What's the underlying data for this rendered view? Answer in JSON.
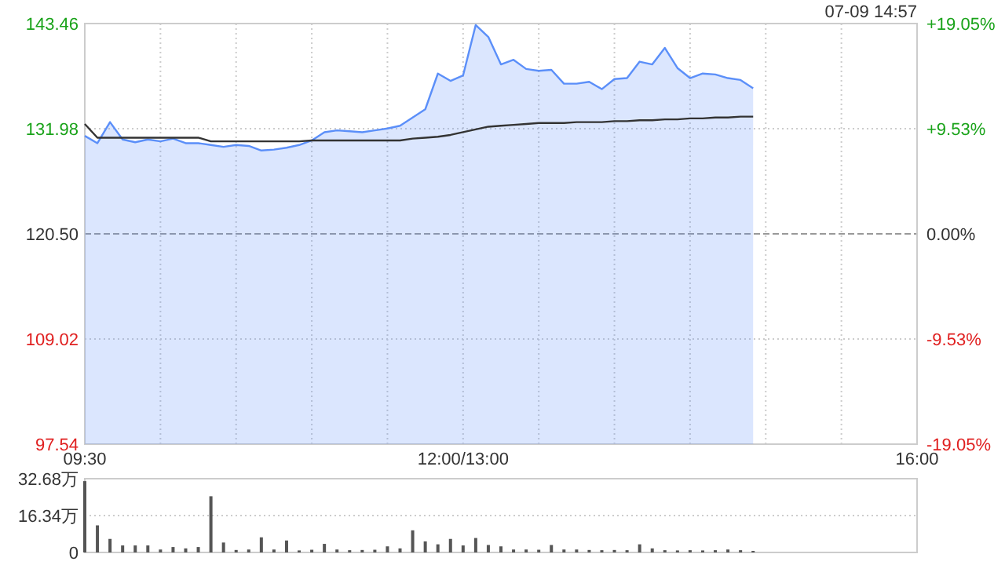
{
  "chart_data": [
    {
      "type": "area",
      "annotations": [
        "07-09 14:57"
      ],
      "categories": [
        "09:30",
        null,
        null,
        null,
        null,
        null,
        null,
        null,
        null,
        null,
        null,
        null,
        null,
        null,
        null,
        null,
        null,
        null,
        null,
        null,
        null,
        null,
        null,
        null,
        null,
        null,
        null,
        null,
        null,
        null,
        "12:00/13:00",
        null,
        null,
        null,
        null,
        null,
        null,
        null,
        null,
        null,
        null,
        null,
        null,
        null,
        null,
        null,
        null,
        null,
        null,
        null,
        null,
        null,
        null,
        null,
        null,
        null,
        null,
        null,
        null,
        null,
        null,
        null,
        null,
        null,
        null,
        null,
        "16:00"
      ],
      "series": [
        {
          "type": "area",
          "color": "#5b8ff9",
          "values": [
            131.2,
            130.4,
            132.7,
            130.8,
            130.5,
            130.8,
            130.6,
            130.9,
            130.4,
            130.4,
            130.2,
            130.0,
            130.2,
            130.1,
            129.6,
            129.7,
            129.9,
            130.2,
            130.7,
            131.6,
            131.8,
            131.7,
            131.6,
            131.8,
            132.0,
            132.3,
            133.2,
            134.1,
            138.0,
            137.2,
            137.8,
            143.3,
            142.0,
            139.0,
            139.5,
            138.5,
            138.3,
            138.4,
            136.9,
            136.9,
            137.1,
            136.3,
            137.4,
            137.5,
            139.3,
            139.0,
            140.8,
            138.6,
            137.5,
            138.0,
            137.9,
            137.5,
            137.3,
            136.4,
            null,
            null,
            null,
            null,
            null,
            null,
            null,
            null,
            null,
            null,
            null,
            null,
            null
          ]
        },
        {
          "type": "line",
          "color": "#333333",
          "values": [
            132.5,
            131.0,
            131.0,
            131.0,
            131.0,
            131.0,
            131.0,
            131.0,
            131.0,
            131.0,
            130.6,
            130.6,
            130.6,
            130.6,
            130.6,
            130.6,
            130.6,
            130.6,
            130.7,
            130.7,
            130.7,
            130.7,
            130.7,
            130.7,
            130.7,
            130.7,
            130.9,
            131.0,
            131.1,
            131.3,
            131.6,
            131.9,
            132.2,
            132.3,
            132.4,
            132.5,
            132.6,
            132.6,
            132.6,
            132.7,
            132.7,
            132.7,
            132.8,
            132.8,
            132.9,
            132.9,
            133.0,
            133.0,
            133.1,
            133.1,
            133.2,
            133.2,
            133.3,
            133.3,
            null,
            null,
            null,
            null,
            null,
            null,
            null,
            null,
            null,
            null,
            null,
            null,
            null
          ]
        }
      ],
      "ylim": [
        97.54,
        143.46
      ],
      "yticks": [
        97.54,
        109.02,
        {
          "value": 120.5,
          "label": "120.50"
        },
        131.98,
        143.46
      ],
      "y2lim": [
        -19.05,
        19.05
      ],
      "y2ticks": [
        {
          "value": -19.05,
          "label": "-19.05%"
        },
        {
          "value": -9.53,
          "label": "-9.53%"
        },
        {
          "value": 0,
          "label": "0.00%"
        },
        {
          "value": 9.53,
          "label": "+9.53%"
        },
        {
          "value": 19.05,
          "label": "+19.05%"
        }
      ],
      "ref_lines": [
        {
          "axis": "y",
          "value": 120.5,
          "line_style": "dashed"
        }
      ],
      "grid": true
    },
    {
      "type": "bar",
      "color": "#555555",
      "tick_labels": "y",
      "grid": "y",
      "categories": [
        null,
        null,
        null,
        null,
        null,
        null,
        null,
        null,
        null,
        null,
        null,
        null,
        null,
        null,
        null,
        null,
        null,
        null,
        null,
        null,
        null,
        null,
        null,
        null,
        null,
        null,
        null,
        null,
        null,
        null,
        null,
        null,
        null,
        null,
        null,
        null,
        null,
        null,
        null,
        null,
        null,
        null,
        null,
        null,
        null,
        null,
        null,
        null,
        null,
        null,
        null,
        null,
        null,
        null,
        null,
        null,
        null,
        null,
        null,
        null,
        null,
        null,
        null,
        null,
        null,
        null,
        null
      ],
      "values": [
        31.6,
        12.0,
        6.0,
        3.1,
        3.1,
        3.1,
        1.3,
        2.4,
        1.8,
        2.4,
        24.9,
        4.4,
        1.1,
        1.3,
        6.7,
        1.3,
        5.3,
        0.9,
        1.2,
        3.8,
        1.3,
        1.0,
        1.1,
        1.2,
        2.7,
        1.8,
        9.8,
        4.9,
        3.6,
        6.0,
        3.1,
        6.4,
        3.3,
        2.7,
        1.3,
        1.3,
        1.2,
        3.3,
        1.3,
        1.3,
        1.1,
        1.0,
        1.1,
        1.0,
        3.6,
        1.8,
        1.0,
        0.9,
        1.0,
        0.9,
        1.0,
        1.3,
        1.0,
        0.7,
        null,
        null,
        null,
        null,
        null,
        null,
        null,
        null,
        null,
        null,
        null,
        null,
        null
      ],
      "ylim": [
        0,
        32.68
      ],
      "yticks": [
        0,
        {
          "value": 16.34,
          "label": "16.34万"
        },
        {
          "value": 32.68,
          "label": "32.68万"
        }
      ]
    }
  ]
}
